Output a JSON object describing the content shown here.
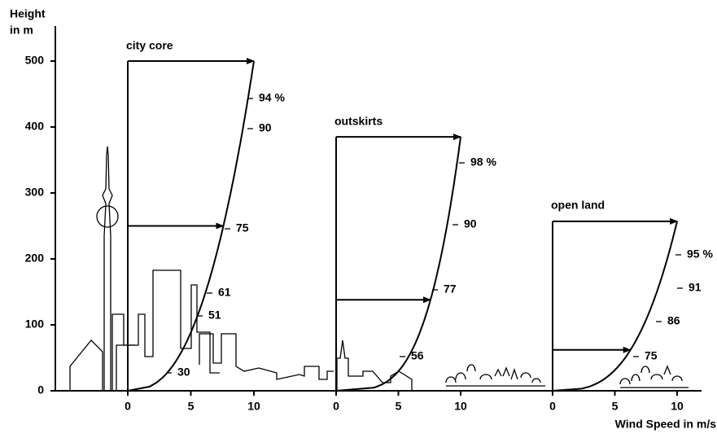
{
  "y_axis": {
    "label_lines": [
      "Height",
      "in m"
    ],
    "ticks": [
      0,
      100,
      200,
      300,
      400,
      500
    ]
  },
  "x_axis_label": "Wind Speed in m/s",
  "profiles": [
    {
      "title": "city core",
      "x_ticks": [
        0,
        5,
        10
      ],
      "labels": [
        "94 %",
        "90",
        "75",
        "61",
        "51",
        "30"
      ]
    },
    {
      "title": "outskirts",
      "x_ticks": [
        0,
        5,
        10
      ],
      "labels": [
        "98 %",
        "90",
        "77",
        "56"
      ]
    },
    {
      "title": "open land",
      "x_ticks": [
        0,
        5,
        10
      ],
      "labels": [
        "95 %",
        "91",
        "86",
        "75"
      ]
    }
  ]
}
